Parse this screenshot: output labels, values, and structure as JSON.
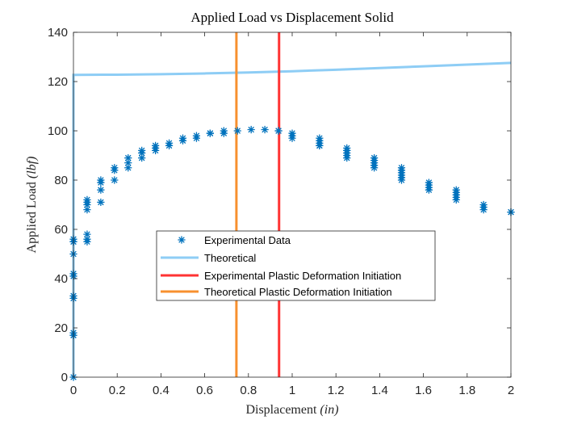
{
  "chart_data": {
    "type": "scatter",
    "title": "Applied Load vs Displacement Solid",
    "xlabel_main": "Displacement ",
    "xlabel_unit": "(in)",
    "ylabel_main": "Applied Load ",
    "ylabel_unit": "(lbf)",
    "xlim": [
      0,
      2
    ],
    "ylim": [
      0,
      140
    ],
    "xticks": [
      0,
      0.2,
      0.4,
      0.6,
      0.8,
      1,
      1.2,
      1.4,
      1.6,
      1.8,
      2
    ],
    "xtick_labels": [
      "0",
      "0.2",
      "0.4",
      "0.6",
      "0.8",
      "1",
      "1.2",
      "1.4",
      "1.6",
      "1.8",
      "2"
    ],
    "yticks": [
      0,
      20,
      40,
      60,
      80,
      100,
      120,
      140
    ],
    "ytick_labels": [
      "0",
      "20",
      "40",
      "60",
      "80",
      "100",
      "120",
      "140"
    ],
    "grid": false,
    "legend_position": "center",
    "series": [
      {
        "name": "Experimental Data",
        "kind": "scatter",
        "marker": "asterisk",
        "color": "#0072BD",
        "x": [
          0,
          0,
          0,
          0,
          0,
          0,
          0,
          0,
          0,
          0,
          0,
          0,
          0.0625,
          0.0625,
          0.0625,
          0.0625,
          0.0625,
          0.0625,
          0.0625,
          0.125,
          0.125,
          0.125,
          0.125,
          0.1875,
          0.1875,
          0.1875,
          0.25,
          0.25,
          0.25,
          0.3125,
          0.3125,
          0.3125,
          0.375,
          0.375,
          0.375,
          0.4375,
          0.4375,
          0.5,
          0.5,
          0.5625,
          0.5625,
          0.625,
          0.625,
          0.6875,
          0.6875,
          0.75,
          0.8125,
          0.875,
          0.9375,
          0.9375,
          1,
          1,
          1,
          1.125,
          1.125,
          1.125,
          1.125,
          1.125,
          1.25,
          1.25,
          1.25,
          1.25,
          1.25,
          1.25,
          1.375,
          1.375,
          1.375,
          1.375,
          1.375,
          1.5,
          1.5,
          1.5,
          1.5,
          1.5,
          1.5,
          1.625,
          1.625,
          1.625,
          1.625,
          1.75,
          1.75,
          1.75,
          1.75,
          1.75,
          1.875,
          1.875,
          1.875,
          2,
          2
        ],
        "y": [
          0,
          17,
          18,
          32,
          33,
          41,
          42,
          50,
          55,
          56,
          55,
          17,
          55,
          56,
          58,
          68,
          70,
          71,
          72,
          71,
          76,
          79,
          80,
          80,
          84,
          85,
          85,
          87,
          89,
          89,
          91,
          92,
          92,
          94,
          93,
          94,
          95,
          96,
          97,
          97,
          98,
          99,
          99,
          99,
          100,
          100,
          100.5,
          100.5,
          100,
          100,
          97,
          98,
          99,
          94,
          95,
          96,
          97,
          94,
          89,
          90,
          91,
          92,
          93,
          92,
          85,
          86,
          87,
          88,
          89,
          80,
          81,
          82,
          83,
          84,
          85,
          76,
          77,
          78,
          79,
          72,
          73,
          74,
          75,
          76,
          68,
          69,
          70,
          67,
          67
        ]
      },
      {
        "name": "Theoretical",
        "kind": "line",
        "color": "#8ECDF5",
        "x": [
          0,
          0,
          0.2,
          0.4,
          0.6,
          0.8,
          1.0,
          1.2,
          1.4,
          1.6,
          1.8,
          2.0
        ],
        "y": [
          0,
          122.7,
          122.8,
          123.0,
          123.3,
          123.7,
          124.2,
          124.8,
          125.5,
          126.2,
          126.9,
          127.6
        ]
      },
      {
        "name": "Experimental Plastic Deformation Initiation",
        "kind": "vline",
        "color": "#FF3333",
        "x": 0.94
      },
      {
        "name": "Theoretical Plastic Deformation Initiation",
        "kind": "vline",
        "color": "#F7902F",
        "x": 0.745
      }
    ]
  }
}
